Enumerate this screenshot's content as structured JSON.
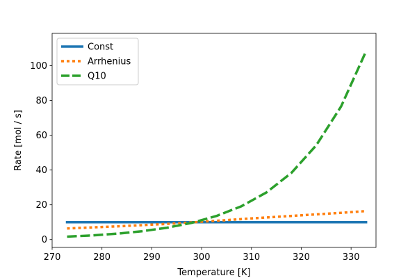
{
  "chart_data": {
    "type": "line",
    "title": "",
    "xlabel": "Temperature [K]",
    "ylabel": "Rate [mol / s]",
    "xlim": [
      270,
      335
    ],
    "ylim": [
      -4.5,
      118.6
    ],
    "xticks": [
      270,
      280,
      290,
      300,
      310,
      320,
      330
    ],
    "yticks": [
      0,
      20,
      40,
      60,
      80,
      100
    ],
    "grid": false,
    "legend": "top-left",
    "series": [
      {
        "name": "Const",
        "style": "solid",
        "color": "#1f77b4",
        "x": [
          273,
          333
        ],
        "y": [
          10,
          10
        ]
      },
      {
        "name": "Arrhenius",
        "style": "dotted",
        "color": "#ff7f0e",
        "x": [
          273,
          278,
          283,
          288,
          293,
          298,
          303,
          308,
          313,
          318,
          323,
          328,
          333
        ],
        "y": [
          6.4,
          7.0,
          7.6,
          8.3,
          9.0,
          9.9,
          10.8,
          11.8,
          12.7,
          13.6,
          14.5,
          15.4,
          16.4
        ]
      },
      {
        "name": "Q10",
        "style": "dashed",
        "color": "#2ca02c",
        "x": [
          273,
          278,
          283,
          288,
          293,
          298,
          303,
          308,
          313,
          318,
          323,
          328,
          333
        ],
        "y": [
          1.7,
          2.4,
          3.4,
          4.8,
          6.8,
          9.6,
          13.6,
          19.2,
          27.1,
          38.3,
          54.2,
          76.6,
          108.3
        ]
      }
    ]
  }
}
